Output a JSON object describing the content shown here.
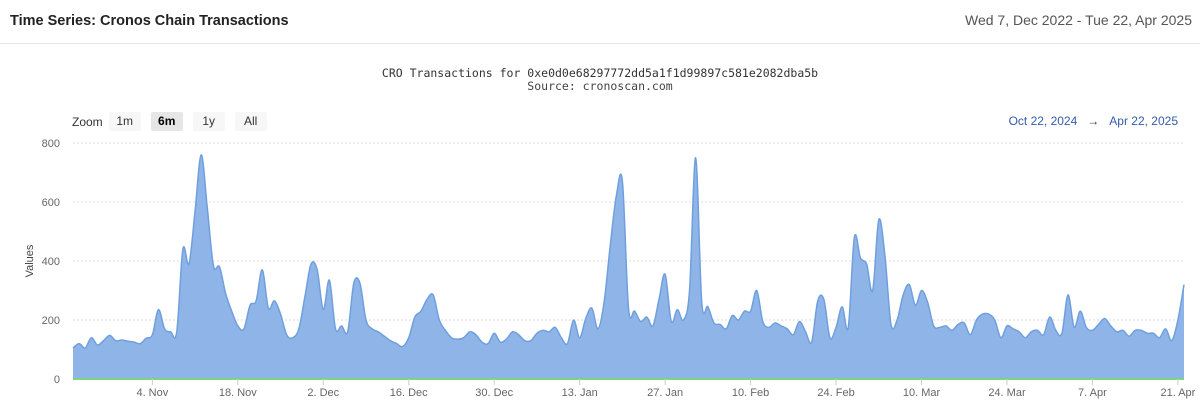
{
  "header": {
    "title": "Time Series: Cronos Chain Transactions",
    "date_range": "Wed 7, Dec 2022 - Tue 22, Apr 2025"
  },
  "zoom": {
    "label": "Zoom",
    "buttons": [
      "1m",
      "6m",
      "1y",
      "All"
    ],
    "active": "6m"
  },
  "range": {
    "from": "Oct 22, 2024",
    "arrow": "→",
    "to": "Apr 22, 2025"
  },
  "colors": {
    "area_fill": "#8fb5e8",
    "line": "#6f9fdd",
    "baseline": "#7ed37e",
    "grid": "#dddddd"
  },
  "chart_data": {
    "type": "area",
    "title": "CRO Transactions for 0xe0d0e68297772dd5a1f1d99897c581e2082dba5b",
    "subtitle": "Source: cronoscan.com",
    "xlabel": "",
    "ylabel": "Values",
    "ylim": [
      0,
      800
    ],
    "yticks": [
      0,
      200,
      400,
      600,
      800
    ],
    "xlim": [
      "2024-10-22",
      "2025-04-22"
    ],
    "xticks": [
      {
        "date": "2024-11-04",
        "label": "4. Nov"
      },
      {
        "date": "2024-11-18",
        "label": "18. Nov"
      },
      {
        "date": "2024-12-02",
        "label": "2. Dec"
      },
      {
        "date": "2024-12-16",
        "label": "16. Dec"
      },
      {
        "date": "2024-12-30",
        "label": "30. Dec"
      },
      {
        "date": "2025-01-13",
        "label": "13. Jan"
      },
      {
        "date": "2025-01-27",
        "label": "27. Jan"
      },
      {
        "date": "2025-02-10",
        "label": "10. Feb"
      },
      {
        "date": "2025-02-24",
        "label": "24. Feb"
      },
      {
        "date": "2025-03-10",
        "label": "10. Mar"
      },
      {
        "date": "2025-03-24",
        "label": "24. Mar"
      },
      {
        "date": "2025-04-07",
        "label": "7. Apr"
      },
      {
        "date": "2025-04-21",
        "label": "21. Apr"
      }
    ],
    "grid": true,
    "series": [
      {
        "points": [
          [
            "2024-10-22",
            105
          ],
          [
            "2024-10-23",
            120
          ],
          [
            "2024-10-24",
            105
          ],
          [
            "2024-10-25",
            140
          ],
          [
            "2024-10-26",
            115
          ],
          [
            "2024-10-27",
            130
          ],
          [
            "2024-10-28",
            148
          ],
          [
            "2024-10-29",
            130
          ],
          [
            "2024-10-30",
            132
          ],
          [
            "2024-10-31",
            128
          ],
          [
            "2024-11-01",
            125
          ],
          [
            "2024-11-02",
            120
          ],
          [
            "2024-11-03",
            138
          ],
          [
            "2024-11-04",
            150
          ],
          [
            "2024-11-05",
            235
          ],
          [
            "2024-11-06",
            170
          ],
          [
            "2024-11-07",
            160
          ],
          [
            "2024-11-08",
            160
          ],
          [
            "2024-11-09",
            440
          ],
          [
            "2024-11-10",
            390
          ],
          [
            "2024-11-11",
            570
          ],
          [
            "2024-11-12",
            760
          ],
          [
            "2024-11-13",
            580
          ],
          [
            "2024-11-14",
            385
          ],
          [
            "2024-11-15",
            380
          ],
          [
            "2024-11-16",
            290
          ],
          [
            "2024-11-17",
            230
          ],
          [
            "2024-11-18",
            180
          ],
          [
            "2024-11-19",
            170
          ],
          [
            "2024-11-20",
            250
          ],
          [
            "2024-11-21",
            265
          ],
          [
            "2024-11-22",
            370
          ],
          [
            "2024-11-23",
            240
          ],
          [
            "2024-11-24",
            265
          ],
          [
            "2024-11-25",
            220
          ],
          [
            "2024-11-26",
            150
          ],
          [
            "2024-11-27",
            140
          ],
          [
            "2024-11-28",
            170
          ],
          [
            "2024-11-29",
            280
          ],
          [
            "2024-11-30",
            390
          ],
          [
            "2024-12-01",
            370
          ],
          [
            "2024-12-02",
            235
          ],
          [
            "2024-12-03",
            335
          ],
          [
            "2024-12-04",
            170
          ],
          [
            "2024-12-05",
            180
          ],
          [
            "2024-12-06",
            160
          ],
          [
            "2024-12-07",
            325
          ],
          [
            "2024-12-08",
            325
          ],
          [
            "2024-12-09",
            200
          ],
          [
            "2024-12-10",
            170
          ],
          [
            "2024-12-11",
            160
          ],
          [
            "2024-12-12",
            145
          ],
          [
            "2024-12-13",
            130
          ],
          [
            "2024-12-14",
            120
          ],
          [
            "2024-12-15",
            110
          ],
          [
            "2024-12-16",
            140
          ],
          [
            "2024-12-17",
            210
          ],
          [
            "2024-12-18",
            230
          ],
          [
            "2024-12-19",
            270
          ],
          [
            "2024-12-20",
            285
          ],
          [
            "2024-12-21",
            200
          ],
          [
            "2024-12-22",
            165
          ],
          [
            "2024-12-23",
            140
          ],
          [
            "2024-12-24",
            135
          ],
          [
            "2024-12-25",
            140
          ],
          [
            "2024-12-26",
            160
          ],
          [
            "2024-12-27",
            150
          ],
          [
            "2024-12-28",
            125
          ],
          [
            "2024-12-29",
            120
          ],
          [
            "2024-12-30",
            155
          ],
          [
            "2024-12-31",
            125
          ],
          [
            "2025-01-01",
            135
          ],
          [
            "2025-01-02",
            160
          ],
          [
            "2025-01-03",
            150
          ],
          [
            "2025-01-04",
            130
          ],
          [
            "2025-01-05",
            130
          ],
          [
            "2025-01-06",
            155
          ],
          [
            "2025-01-07",
            165
          ],
          [
            "2025-01-08",
            160
          ],
          [
            "2025-01-09",
            175
          ],
          [
            "2025-01-10",
            140
          ],
          [
            "2025-01-11",
            120
          ],
          [
            "2025-01-12",
            200
          ],
          [
            "2025-01-13",
            140
          ],
          [
            "2025-01-14",
            205
          ],
          [
            "2025-01-15",
            240
          ],
          [
            "2025-01-16",
            170
          ],
          [
            "2025-01-17",
            260
          ],
          [
            "2025-01-18",
            450
          ],
          [
            "2025-01-19",
            620
          ],
          [
            "2025-01-20",
            670
          ],
          [
            "2025-01-21",
            240
          ],
          [
            "2025-01-22",
            230
          ],
          [
            "2025-01-23",
            195
          ],
          [
            "2025-01-24",
            210
          ],
          [
            "2025-01-25",
            180
          ],
          [
            "2025-01-26",
            270
          ],
          [
            "2025-01-27",
            355
          ],
          [
            "2025-01-28",
            195
          ],
          [
            "2025-01-29",
            235
          ],
          [
            "2025-01-30",
            200
          ],
          [
            "2025-01-31",
            300
          ],
          [
            "2025-02-01",
            750
          ],
          [
            "2025-02-02",
            260
          ],
          [
            "2025-02-03",
            245
          ],
          [
            "2025-02-04",
            190
          ],
          [
            "2025-02-05",
            185
          ],
          [
            "2025-02-06",
            170
          ],
          [
            "2025-02-07",
            215
          ],
          [
            "2025-02-08",
            200
          ],
          [
            "2025-02-09",
            230
          ],
          [
            "2025-02-10",
            230
          ],
          [
            "2025-02-11",
            300
          ],
          [
            "2025-02-12",
            195
          ],
          [
            "2025-02-13",
            175
          ],
          [
            "2025-02-14",
            190
          ],
          [
            "2025-02-15",
            180
          ],
          [
            "2025-02-16",
            170
          ],
          [
            "2025-02-17",
            150
          ],
          [
            "2025-02-18",
            195
          ],
          [
            "2025-02-19",
            160
          ],
          [
            "2025-02-20",
            125
          ],
          [
            "2025-02-21",
            265
          ],
          [
            "2025-02-22",
            270
          ],
          [
            "2025-02-23",
            140
          ],
          [
            "2025-02-24",
            175
          ],
          [
            "2025-02-25",
            245
          ],
          [
            "2025-02-26",
            175
          ],
          [
            "2025-02-27",
            480
          ],
          [
            "2025-02-28",
            410
          ],
          [
            "2025-03-01",
            390
          ],
          [
            "2025-03-02",
            300
          ],
          [
            "2025-03-03",
            540
          ],
          [
            "2025-03-04",
            420
          ],
          [
            "2025-03-05",
            185
          ],
          [
            "2025-03-06",
            200
          ],
          [
            "2025-03-07",
            285
          ],
          [
            "2025-03-08",
            320
          ],
          [
            "2025-03-09",
            250
          ],
          [
            "2025-03-10",
            300
          ],
          [
            "2025-03-11",
            260
          ],
          [
            "2025-03-12",
            180
          ],
          [
            "2025-03-13",
            175
          ],
          [
            "2025-03-14",
            180
          ],
          [
            "2025-03-15",
            165
          ],
          [
            "2025-03-16",
            185
          ],
          [
            "2025-03-17",
            190
          ],
          [
            "2025-03-18",
            150
          ],
          [
            "2025-03-19",
            200
          ],
          [
            "2025-03-20",
            220
          ],
          [
            "2025-03-21",
            220
          ],
          [
            "2025-03-22",
            200
          ],
          [
            "2025-03-23",
            140
          ],
          [
            "2025-03-24",
            180
          ],
          [
            "2025-03-25",
            170
          ],
          [
            "2025-03-26",
            160
          ],
          [
            "2025-03-27",
            140
          ],
          [
            "2025-03-28",
            160
          ],
          [
            "2025-03-29",
            165
          ],
          [
            "2025-03-30",
            150
          ],
          [
            "2025-03-31",
            210
          ],
          [
            "2025-04-01",
            165
          ],
          [
            "2025-04-02",
            155
          ],
          [
            "2025-04-03",
            285
          ],
          [
            "2025-04-04",
            175
          ],
          [
            "2025-04-05",
            230
          ],
          [
            "2025-04-06",
            175
          ],
          [
            "2025-04-07",
            165
          ],
          [
            "2025-04-08",
            185
          ],
          [
            "2025-04-09",
            205
          ],
          [
            "2025-04-10",
            180
          ],
          [
            "2025-04-11",
            160
          ],
          [
            "2025-04-12",
            165
          ],
          [
            "2025-04-13",
            145
          ],
          [
            "2025-04-14",
            165
          ],
          [
            "2025-04-15",
            165
          ],
          [
            "2025-04-16",
            155
          ],
          [
            "2025-04-17",
            155
          ],
          [
            "2025-04-18",
            140
          ],
          [
            "2025-04-19",
            170
          ],
          [
            "2025-04-20",
            130
          ],
          [
            "2025-04-21",
            200
          ],
          [
            "2025-04-22",
            320
          ]
        ]
      }
    ]
  }
}
